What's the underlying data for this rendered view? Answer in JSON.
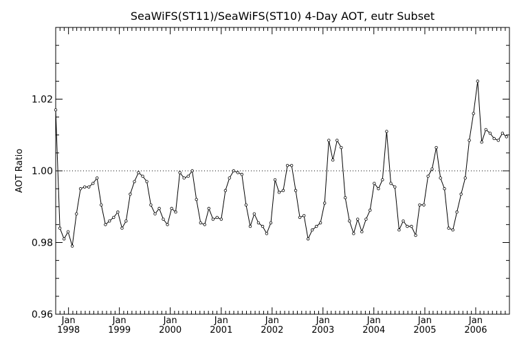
{
  "chart_data": {
    "type": "line",
    "title": "SeaWiFS(ST11)/SeaWiFS(ST10) 4-Day AOT, eutr Subset",
    "ylabel": "AOT Ratio",
    "xlabel": "",
    "xlim": [
      "1997-10-01",
      "2006-08-31"
    ],
    "ylim": [
      0.96,
      1.04
    ],
    "y_ticks": [
      0.96,
      0.98,
      1.0,
      1.02
    ],
    "y_tick_labels": [
      "0.96",
      "0.98",
      "1.00",
      "1.02"
    ],
    "x_ticks": [
      {
        "date": "1998-01-01",
        "month": "Jan",
        "year": "1998"
      },
      {
        "date": "1999-01-01",
        "month": "Jan",
        "year": "1999"
      },
      {
        "date": "2000-01-01",
        "month": "Jan",
        "year": "2000"
      },
      {
        "date": "2001-01-01",
        "month": "Jan",
        "year": "2001"
      },
      {
        "date": "2002-01-01",
        "month": "Jan",
        "year": "2002"
      },
      {
        "date": "2003-01-01",
        "month": "Jan",
        "year": "2003"
      },
      {
        "date": "2004-01-01",
        "month": "Jan",
        "year": "2004"
      },
      {
        "date": "2005-01-01",
        "month": "Jan",
        "year": "2005"
      },
      {
        "date": "2006-01-01",
        "month": "Jan",
        "year": "2006"
      }
    ],
    "reference_line": {
      "y": 1.0,
      "style": "dotted"
    },
    "grid": false,
    "series": [
      {
        "x": [
          "1997-10-01",
          "1997-10-31",
          "1997-11-30",
          "1997-12-29",
          "1998-01-28",
          "1998-02-27",
          "1998-03-28",
          "1998-04-27",
          "1998-05-27",
          "1998-06-26",
          "1998-07-25",
          "1998-08-24",
          "1998-09-23",
          "1998-10-22",
          "1998-11-21",
          "1998-12-21",
          "1999-01-20",
          "1999-02-18",
          "1999-03-20",
          "1999-04-19",
          "1999-05-18",
          "1999-06-17",
          "1999-07-17",
          "1999-08-15",
          "1999-09-14",
          "1999-10-14",
          "1999-11-12",
          "1999-12-12",
          "2000-01-11",
          "2000-02-09",
          "2000-03-10",
          "2000-04-09",
          "2000-05-09",
          "2000-06-07",
          "2000-07-07",
          "2000-08-06",
          "2000-09-04",
          "2000-10-04",
          "2000-11-03",
          "2000-12-02",
          "2001-01-01",
          "2001-01-31",
          "2001-03-01",
          "2001-03-31",
          "2001-04-30",
          "2001-05-29",
          "2001-06-28",
          "2001-07-28",
          "2001-08-26",
          "2001-09-25",
          "2001-10-25",
          "2001-11-23",
          "2001-12-23",
          "2002-01-22",
          "2002-02-20",
          "2002-03-22",
          "2002-04-21",
          "2002-05-21",
          "2002-06-19",
          "2002-07-19",
          "2002-08-18",
          "2002-09-16",
          "2002-10-16",
          "2002-11-15",
          "2002-12-14",
          "2003-01-13",
          "2003-02-12",
          "2003-03-13",
          "2003-04-12",
          "2003-05-12",
          "2003-06-10",
          "2003-07-10",
          "2003-08-09",
          "2003-09-07",
          "2003-10-07",
          "2003-11-06",
          "2003-12-05",
          "2004-01-04",
          "2004-02-03",
          "2004-03-03",
          "2004-04-02",
          "2004-05-02",
          "2004-05-31",
          "2004-06-30",
          "2004-07-30",
          "2004-08-28",
          "2004-09-27",
          "2004-10-27",
          "2004-11-25",
          "2004-12-25",
          "2005-01-24",
          "2005-02-22",
          "2005-03-24",
          "2005-04-23",
          "2005-05-22",
          "2005-06-21",
          "2005-07-21",
          "2005-08-19",
          "2005-09-18",
          "2005-10-18",
          "2005-11-16",
          "2005-12-16",
          "2006-01-15",
          "2006-02-13",
          "2006-03-15",
          "2006-04-14",
          "2006-05-13",
          "2006-06-12",
          "2006-07-12",
          "2006-08-10"
        ],
        "y": [
          1.017,
          0.984,
          0.981,
          0.983,
          0.979,
          0.988,
          0.995,
          0.9955,
          0.9955,
          0.9965,
          0.998,
          0.9905,
          0.985,
          0.986,
          0.987,
          0.9885,
          0.984,
          0.986,
          0.9935,
          0.997,
          0.9995,
          0.9985,
          0.997,
          0.9905,
          0.988,
          0.9895,
          0.9865,
          0.985,
          0.9895,
          0.9885,
          0.9995,
          0.998,
          0.9985,
          1.0,
          0.992,
          0.9855,
          0.985,
          0.9895,
          0.9865,
          0.987,
          0.9865,
          0.9945,
          0.998,
          1.0,
          0.9995,
          0.999,
          0.9905,
          0.9845,
          0.988,
          0.9855,
          0.9845,
          0.9825,
          0.9855,
          0.9975,
          0.994,
          0.9945,
          1.0015,
          1.0015,
          0.9945,
          0.987,
          0.9875,
          0.981,
          0.9835,
          0.9845,
          0.9855,
          0.991,
          1.0085,
          1.003,
          1.0085,
          1.0065,
          0.9925,
          0.986,
          0.9825,
          0.9865,
          0.983,
          0.9865,
          0.989,
          0.9965,
          0.995,
          0.9975,
          1.011,
          0.9965,
          0.9955,
          0.9835,
          0.986,
          0.9845,
          0.9845,
          0.982,
          0.9905,
          0.9905,
          0.9985,
          1.0005,
          1.0065,
          0.998,
          0.995,
          0.984,
          0.9835,
          0.9885,
          0.9935,
          0.998,
          1.0085,
          1.016,
          1.025,
          1.008,
          1.0115,
          1.0105,
          1.009,
          1.0085,
          1.0105,
          1.0095
        ]
      }
    ]
  }
}
